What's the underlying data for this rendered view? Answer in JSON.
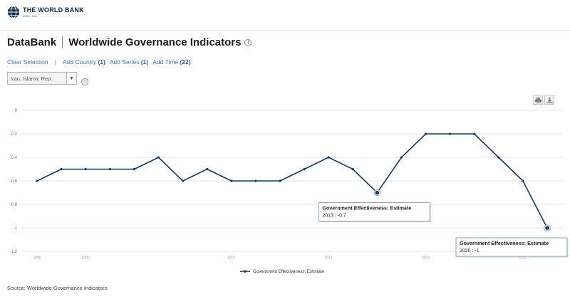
{
  "header": {
    "logo_name": "THE WORLD BANK",
    "logo_sub": "IBRD · IDA"
  },
  "title": {
    "brand": "DataBank",
    "database": "Worldwide Governance Indicators"
  },
  "actions": {
    "clear": "Clear Selection",
    "separator": "|",
    "add_country": "Add Country",
    "add_country_count": "(1)",
    "add_series": "Add Series",
    "add_series_count": "(1)",
    "add_time": "Add Time",
    "add_time_count": "(22)"
  },
  "country_select": {
    "value": "Iran, Islamic Rep."
  },
  "icons": {
    "print": "print-icon",
    "download": "download-icon",
    "info": "info-icon"
  },
  "colors": {
    "series_line": "#1b3a5f",
    "link": "#3b79b8",
    "gridline": "#e3e3e3"
  },
  "chart_data": {
    "type": "line",
    "title": "",
    "xlabel": "",
    "ylabel": "",
    "ylim": [
      -1.2,
      0
    ],
    "yticks": [
      0,
      -0.2,
      -0.4,
      -0.6,
      -0.8,
      -1,
      -1.2
    ],
    "ytick_labels": [
      "0",
      "-0.2",
      "-0.4",
      "-0.6",
      "-0.8",
      "-1",
      "-1.2"
    ],
    "x": [
      1996,
      1998,
      2000,
      2002,
      2003,
      2004,
      2005,
      2006,
      2007,
      2008,
      2009,
      2010,
      2011,
      2012,
      2013,
      2014,
      2015,
      2016,
      2017,
      2018,
      2019,
      2020
    ],
    "xtick_labels": [
      "1996",
      "2000",
      "2007",
      "2011",
      "2015",
      "2019"
    ],
    "series": [
      {
        "name": "Government Effectiveness: Estimate",
        "values": [
          -0.6,
          -0.5,
          -0.5,
          -0.5,
          -0.5,
          -0.4,
          -0.6,
          -0.5,
          -0.6,
          -0.6,
          -0.6,
          -0.5,
          -0.4,
          -0.5,
          -0.7,
          -0.4,
          -0.2,
          -0.2,
          -0.2,
          -0.4,
          -0.6,
          -1
        ]
      }
    ],
    "legend": "bottom-center",
    "grid": true,
    "tooltips": [
      {
        "title": "Government Effectiveness: Estimate",
        "text": "2013 : -0.7",
        "x": 2013
      },
      {
        "title": "Government Effectiveness: Estimate",
        "text": "2020 : -1",
        "x": 2020
      }
    ]
  },
  "footer": {
    "source": "Source: Worldwide Governance Indicators"
  }
}
